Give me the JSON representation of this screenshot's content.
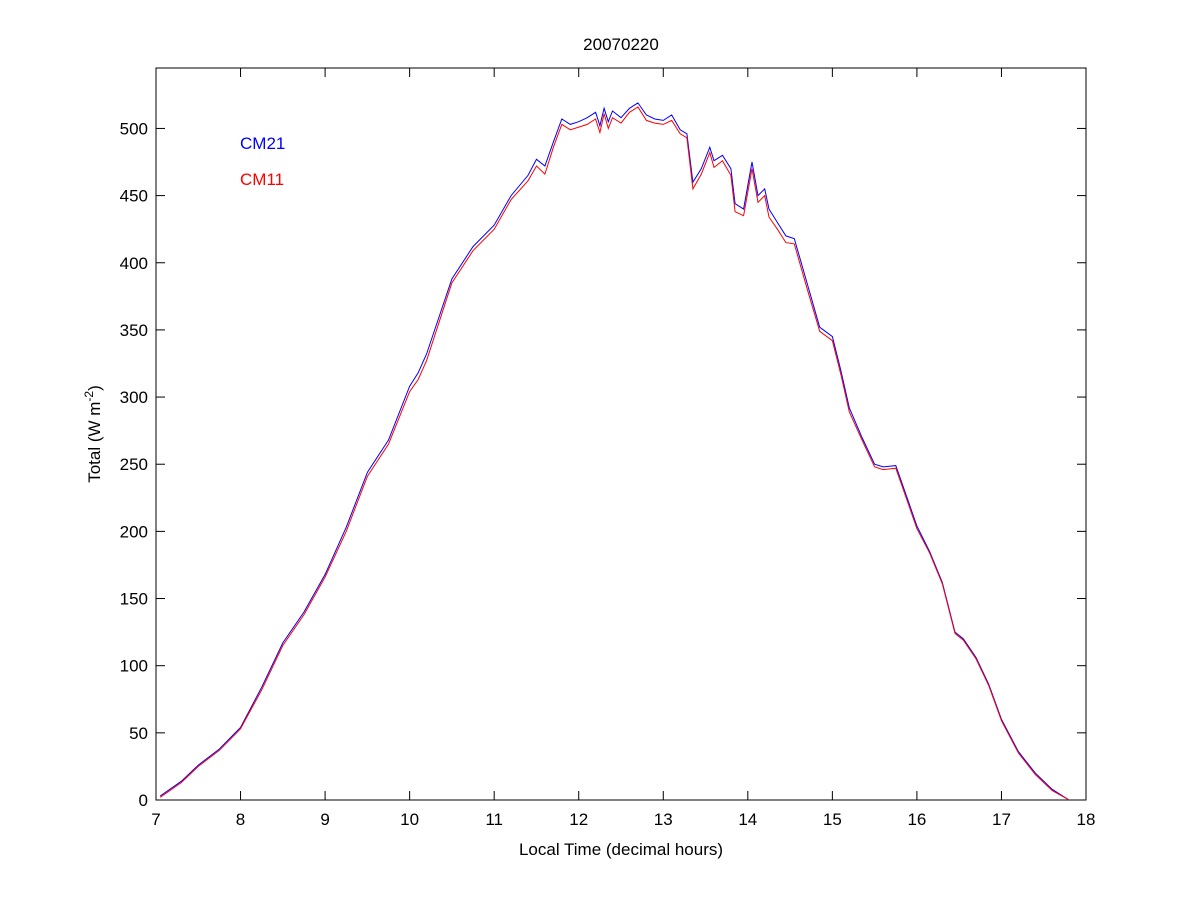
{
  "chart_data": {
    "type": "line",
    "title": "20070220",
    "xlabel": "Local Time (decimal hours)",
    "ylabel": "Total (W m",
    "ylabel_sup": "-2",
    "ylabel_end": ")",
    "xlim": [
      7,
      18
    ],
    "ylim": [
      0,
      545
    ],
    "xticks": [
      7,
      8,
      9,
      10,
      11,
      12,
      13,
      14,
      15,
      16,
      17,
      18
    ],
    "yticks": [
      0,
      50,
      100,
      150,
      200,
      250,
      300,
      350,
      400,
      450,
      500
    ],
    "grid": false,
    "legend_placement": "top-left",
    "series": [
      {
        "name": "CM21",
        "color": "#0000ff",
        "x": [
          7.05,
          7.3,
          7.5,
          7.75,
          8.0,
          8.25,
          8.5,
          8.75,
          9.0,
          9.25,
          9.5,
          9.75,
          10.0,
          10.1,
          10.2,
          10.35,
          10.5,
          10.75,
          11.0,
          11.2,
          11.4,
          11.5,
          11.6,
          11.7,
          11.8,
          11.9,
          12.0,
          12.1,
          12.2,
          12.25,
          12.3,
          12.35,
          12.4,
          12.5,
          12.6,
          12.7,
          12.8,
          12.9,
          13.0,
          13.1,
          13.2,
          13.28,
          13.35,
          13.45,
          13.55,
          13.6,
          13.7,
          13.8,
          13.85,
          13.95,
          14.05,
          14.12,
          14.2,
          14.25,
          14.35,
          14.45,
          14.55,
          14.7,
          14.85,
          15.0,
          15.1,
          15.2,
          15.35,
          15.5,
          15.6,
          15.75,
          15.9,
          16.0,
          16.15,
          16.3,
          16.45,
          16.55,
          16.7,
          16.85,
          17.0,
          17.2,
          17.4,
          17.6,
          17.8
        ],
        "y": [
          3,
          14,
          26,
          38,
          54,
          84,
          117,
          140,
          168,
          203,
          244,
          268,
          308,
          318,
          332,
          360,
          388,
          412,
          428,
          450,
          465,
          477,
          472,
          490,
          507,
          503,
          505,
          508,
          512,
          502,
          515,
          505,
          513,
          508,
          515,
          519,
          510,
          507,
          506,
          510,
          499,
          496,
          460,
          470,
          486,
          476,
          480,
          470,
          444,
          440,
          475,
          450,
          455,
          440,
          430,
          420,
          418,
          385,
          352,
          345,
          320,
          292,
          270,
          250,
          248,
          249,
          222,
          204,
          185,
          162,
          125,
          120,
          106,
          86,
          60,
          36,
          20,
          8,
          0
        ]
      },
      {
        "name": "CM11",
        "color": "#ff0000",
        "x": [
          7.05,
          7.3,
          7.5,
          7.75,
          8.0,
          8.25,
          8.5,
          8.75,
          9.0,
          9.25,
          9.5,
          9.75,
          10.0,
          10.1,
          10.2,
          10.35,
          10.5,
          10.75,
          11.0,
          11.2,
          11.4,
          11.5,
          11.6,
          11.7,
          11.8,
          11.9,
          12.0,
          12.1,
          12.2,
          12.25,
          12.3,
          12.35,
          12.4,
          12.5,
          12.6,
          12.7,
          12.8,
          12.9,
          13.0,
          13.1,
          13.2,
          13.28,
          13.35,
          13.45,
          13.55,
          13.6,
          13.7,
          13.8,
          13.85,
          13.95,
          14.05,
          14.12,
          14.2,
          14.25,
          14.35,
          14.45,
          14.55,
          14.7,
          14.85,
          15.0,
          15.1,
          15.2,
          15.35,
          15.5,
          15.6,
          15.75,
          15.9,
          16.0,
          16.15,
          16.3,
          16.45,
          16.55,
          16.7,
          16.85,
          17.0,
          17.2,
          17.4,
          17.6,
          17.8
        ],
        "y": [
          2,
          13,
          25,
          37,
          53,
          82,
          115,
          138,
          166,
          200,
          241,
          265,
          304,
          313,
          327,
          356,
          385,
          409,
          425,
          447,
          461,
          472,
          466,
          486,
          503,
          499,
          501,
          503,
          507,
          497,
          511,
          500,
          508,
          504,
          512,
          516,
          506,
          504,
          503,
          506,
          496,
          493,
          455,
          466,
          482,
          471,
          476,
          465,
          438,
          435,
          470,
          445,
          450,
          434,
          425,
          415,
          414,
          381,
          349,
          342,
          317,
          289,
          268,
          248,
          246,
          247,
          220,
          202,
          184,
          161,
          124,
          119,
          105,
          85,
          59,
          35,
          19,
          7,
          0
        ]
      }
    ]
  }
}
